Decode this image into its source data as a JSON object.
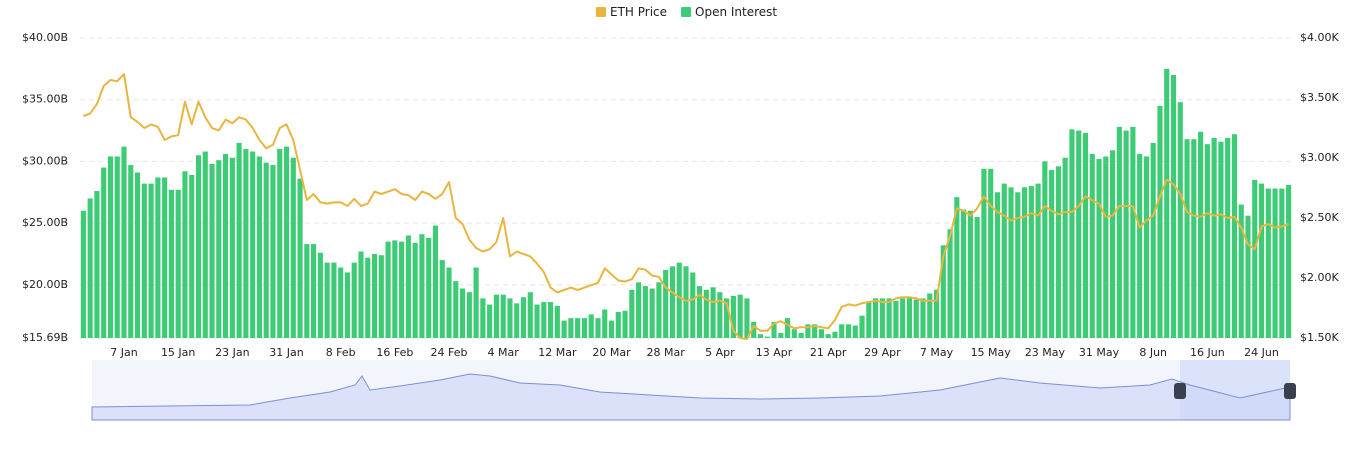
{
  "chart_data": {
    "type": "combo",
    "categories": [
      null,
      null,
      null,
      null,
      null,
      null,
      "7 Jan",
      null,
      null,
      null,
      null,
      null,
      null,
      null,
      "15 Jan",
      null,
      null,
      null,
      null,
      null,
      null,
      null,
      "23 Jan",
      null,
      null,
      null,
      null,
      null,
      null,
      null,
      "31 Jan",
      null,
      null,
      null,
      null,
      null,
      null,
      null,
      "8 Feb",
      null,
      null,
      null,
      null,
      null,
      null,
      null,
      "16 Feb",
      null,
      null,
      null,
      null,
      null,
      null,
      null,
      "24 Feb",
      null,
      null,
      null,
      null,
      null,
      null,
      null,
      "4 Mar",
      null,
      null,
      null,
      null,
      null,
      null,
      null,
      "12 Mar",
      null,
      null,
      null,
      null,
      null,
      null,
      null,
      "20 Mar",
      null,
      null,
      null,
      null,
      null,
      null,
      null,
      "28 Mar",
      null,
      null,
      null,
      null,
      null,
      null,
      null,
      "5 Apr",
      null,
      null,
      null,
      null,
      null,
      null,
      null,
      "13 Apr",
      null,
      null,
      null,
      null,
      null,
      null,
      null,
      "21 Apr",
      null,
      null,
      null,
      null,
      null,
      null,
      null,
      "29 Apr",
      null,
      null,
      null,
      null,
      null,
      null,
      null,
      "7 May",
      null,
      null,
      null,
      null,
      null,
      null,
      null,
      "15 May",
      null,
      null,
      null,
      null,
      null,
      null,
      null,
      "23 May",
      null,
      null,
      null,
      null,
      null,
      null,
      null,
      "31 May",
      null,
      null,
      null,
      null,
      null,
      null,
      null,
      "8 Jun",
      null,
      null,
      null,
      null,
      null,
      null,
      null,
      "16 Jun",
      null,
      null,
      null,
      null,
      null,
      null,
      null,
      "24 Jun",
      null,
      null,
      null,
      null
    ],
    "series": [
      {
        "name": "ETH Price",
        "type": "line",
        "axis": "y2",
        "color": "#e8b53f",
        "values": [
          3350,
          3370,
          3450,
          3600,
          3650,
          3640,
          3700,
          3340,
          3300,
          3250,
          3280,
          3260,
          3150,
          3180,
          3190,
          3470,
          3280,
          3470,
          3340,
          3250,
          3230,
          3320,
          3290,
          3340,
          3320,
          3250,
          3150,
          3080,
          3110,
          3250,
          3280,
          3150,
          2900,
          2650,
          2700,
          2630,
          2620,
          2630,
          2630,
          2600,
          2660,
          2600,
          2620,
          2720,
          2700,
          2720,
          2740,
          2700,
          2690,
          2650,
          2720,
          2700,
          2660,
          2700,
          2800,
          2500,
          2450,
          2320,
          2250,
          2220,
          2240,
          2300,
          2500,
          2180,
          2220,
          2200,
          2180,
          2120,
          2050,
          1920,
          1880,
          1900,
          1920,
          1900,
          1920,
          1940,
          1960,
          2080,
          2030,
          1980,
          1970,
          1990,
          2080,
          2070,
          2020,
          2010,
          1920,
          1880,
          1840,
          1810,
          1820,
          1860,
          1820,
          1800,
          1810,
          1790,
          1560,
          1500,
          1490,
          1600,
          1560,
          1560,
          1620,
          1640,
          1610,
          1580,
          1590,
          1590,
          1600,
          1590,
          1580,
          1650,
          1760,
          1780,
          1770,
          1790,
          1800,
          1810,
          1800,
          1800,
          1830,
          1840,
          1840,
          1830,
          1810,
          1810,
          1810,
          2180,
          2350,
          2580,
          2560,
          2520,
          2580,
          2680,
          2600,
          2550,
          2520,
          2480,
          2500,
          2510,
          2540,
          2520,
          2600,
          2560,
          2530,
          2550,
          2550,
          2600,
          2680,
          2650,
          2620,
          2510,
          2520,
          2600,
          2600,
          2600,
          2420,
          2480,
          2520,
          2680,
          2820,
          2780,
          2700,
          2550,
          2520,
          2510,
          2540,
          2520,
          2530,
          2500,
          2510,
          2420,
          2280,
          2240,
          2430,
          2450,
          2420,
          2430,
          2450
        ]
      },
      {
        "name": "Open Interest",
        "type": "bar",
        "color": "#3dcc75",
        "values": [
          26.0,
          27.0,
          27.6,
          29.5,
          30.4,
          30.4,
          31.2,
          29.7,
          29.1,
          28.2,
          28.2,
          28.7,
          28.7,
          27.7,
          27.7,
          29.2,
          28.9,
          30.5,
          30.8,
          29.8,
          30.1,
          30.6,
          30.3,
          31.5,
          31.0,
          30.8,
          30.4,
          29.9,
          29.7,
          31.0,
          31.2,
          30.3,
          28.6,
          23.3,
          23.3,
          22.6,
          21.8,
          21.8,
          21.4,
          21.0,
          21.8,
          22.7,
          22.2,
          22.5,
          22.4,
          23.5,
          23.6,
          23.5,
          24.0,
          23.4,
          24.1,
          23.8,
          24.8,
          22.0,
          21.4,
          20.3,
          19.7,
          19.4,
          21.4,
          18.9,
          18.4,
          19.2,
          19.2,
          18.9,
          18.5,
          19.0,
          19.4,
          18.4,
          18.6,
          18.6,
          18.3,
          17.1,
          17.3,
          17.3,
          17.3,
          17.6,
          17.3,
          18.0,
          17.1,
          17.8,
          17.9,
          19.6,
          20.2,
          19.9,
          19.7,
          20.2,
          21.2,
          21.5,
          21.8,
          21.5,
          21.0,
          19.9,
          19.6,
          19.8,
          19.4,
          18.9,
          19.1,
          19.2,
          18.9,
          17.0,
          16.0,
          15.8,
          17.0,
          16.1,
          17.3,
          16.4,
          16.1,
          16.8,
          16.8,
          16.4,
          16.0,
          16.2,
          16.8,
          16.8,
          16.7,
          17.5,
          18.6,
          18.9,
          18.9,
          18.9,
          18.7,
          18.9,
          19.0,
          18.8,
          18.9,
          19.3,
          19.6,
          23.2,
          24.5,
          27.1,
          26.1,
          26.0,
          25.5,
          29.4,
          29.4,
          27.5,
          28.2,
          27.9,
          27.5,
          27.9,
          28.0,
          28.2,
          30.0,
          29.3,
          29.6,
          30.3,
          32.6,
          32.5,
          32.3,
          30.6,
          30.2,
          30.4,
          30.9,
          32.8,
          32.5,
          32.8,
          30.6,
          30.4,
          31.5,
          34.5,
          37.5,
          37.0,
          34.8,
          31.8,
          31.8,
          32.4,
          31.4,
          31.9,
          31.6,
          31.9,
          32.2,
          26.5,
          25.6,
          28.5,
          28.2,
          27.8,
          27.8,
          27.8,
          28.1
        ]
      }
    ],
    "ylim": [
      15.69,
      40
    ],
    "yticks": [
      {
        "value": 15.69,
        "label": "$15.69B"
      },
      {
        "value": 20,
        "label": "$20.00B"
      },
      {
        "value": 25,
        "label": "$25.00B"
      },
      {
        "value": 30,
        "label": "$30.00B"
      },
      {
        "value": 35,
        "label": "$35.00B"
      },
      {
        "value": 40,
        "label": "$40.00B"
      }
    ],
    "y2lim": [
      1500,
      4000
    ],
    "y2ticks": [
      {
        "value": 1500,
        "label": "$1.50K"
      },
      {
        "value": 2000,
        "label": "$2.00K"
      },
      {
        "value": 2500,
        "label": "$2.50K"
      },
      {
        "value": 3000,
        "label": "$3.00K"
      },
      {
        "value": 3500,
        "label": "$3.50K"
      },
      {
        "value": 4000,
        "label": "$4.00K"
      }
    ],
    "grid": true
  }
}
